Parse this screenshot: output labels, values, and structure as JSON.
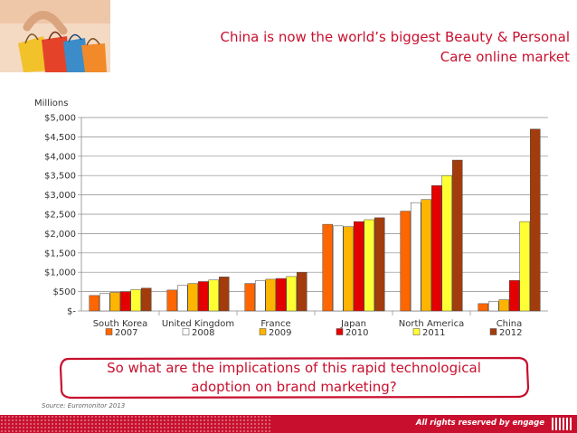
{
  "header": {
    "title_line1": "China is now the world’s biggest Beauty & Personal",
    "title_line2": "Care online market"
  },
  "callout": {
    "line1": "So what are the implications of this rapid technological",
    "line2": "adoption on brand marketing?"
  },
  "source": "Source: Euromonitor 2013",
  "footer": {
    "text": "All rights reserved by engage"
  },
  "colors": {
    "accent": "#c8102e",
    "series": [
      "#ff6600",
      "#ffffff",
      "#ffb400",
      "#e40000",
      "#ffff33",
      "#a23c0c"
    ]
  },
  "chart_data": {
    "type": "bar",
    "unit_label": "Millions",
    "categories": [
      "South Korea",
      "United Kingdom",
      "France",
      "Japan",
      "North America",
      "China"
    ],
    "series": [
      {
        "name": "2007",
        "values": [
          400,
          540,
          710,
          2240,
          2580,
          190
        ]
      },
      {
        "name": "2008",
        "values": [
          450,
          660,
          780,
          2200,
          2800,
          240
        ]
      },
      {
        "name": "2009",
        "values": [
          480,
          710,
          820,
          2180,
          2880,
          290
        ]
      },
      {
        "name": "2010",
        "values": [
          500,
          760,
          840,
          2310,
          3240,
          790
        ]
      },
      {
        "name": "2011",
        "values": [
          550,
          800,
          890,
          2360,
          3500,
          2310
        ]
      },
      {
        "name": "2012",
        "values": [
          590,
          880,
          1000,
          2410,
          3900,
          4700
        ]
      }
    ],
    "ylim": [
      0,
      5000
    ],
    "yticks": [
      {
        "value": 0,
        "label": "$-"
      },
      {
        "value": 500,
        "label": "$500"
      },
      {
        "value": 1000,
        "label": "$1,000"
      },
      {
        "value": 1500,
        "label": "$1,500"
      },
      {
        "value": 2000,
        "label": "$2,000"
      },
      {
        "value": 2500,
        "label": "$2,500"
      },
      {
        "value": 3000,
        "label": "$3,000"
      },
      {
        "value": 3500,
        "label": "$3,500"
      },
      {
        "value": 4000,
        "label": "$4,000"
      },
      {
        "value": 4500,
        "label": "$4,500"
      },
      {
        "value": 5000,
        "label": "$5,000"
      }
    ],
    "grid": true,
    "legend": "bottom"
  }
}
